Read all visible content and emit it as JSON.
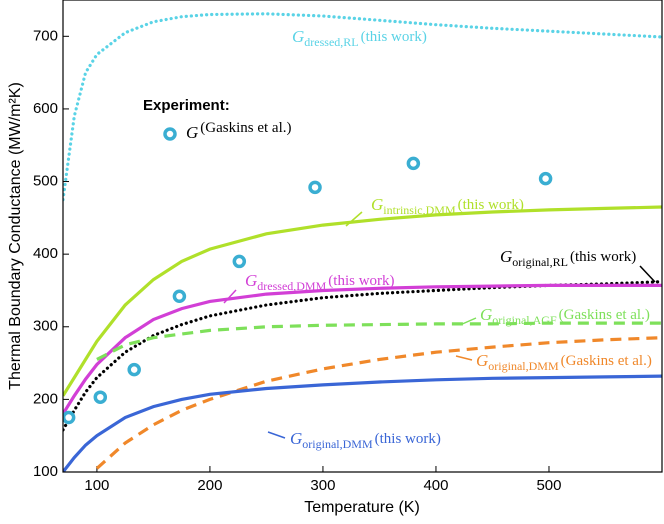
{
  "chart_data": {
    "type": "line",
    "x_label": "Temperature (K)",
    "y_label": "Thermal Boundary Conductance (MW/m²K)",
    "xlim": [
      70,
      600
    ],
    "ylim": [
      100,
      750
    ],
    "xticks": [
      100,
      200,
      300,
      400,
      500
    ],
    "yticks": [
      100,
      200,
      300,
      400,
      500,
      600,
      700
    ],
    "grid": false,
    "x": [
      70,
      80,
      90,
      100,
      125,
      150,
      175,
      200,
      250,
      300,
      350,
      400,
      450,
      500,
      550,
      600
    ],
    "series": [
      {
        "symbol": "G",
        "subscript": "dressed,RL",
        "note": "(this work)",
        "color": "#5ad3e6",
        "dash": "dotted",
        "values": [
          475,
          590,
          650,
          675,
          705,
          720,
          727,
          730,
          731,
          728,
          722,
          716,
          711,
          707,
          703,
          699
        ]
      },
      {
        "symbol": "G",
        "subscript": "intrinsic,DMM",
        "note": "(this work)",
        "color": "#b0e02a",
        "dash": "solid",
        "values": [
          205,
          230,
          255,
          280,
          330,
          365,
          390,
          407,
          428,
          440,
          448,
          454,
          458,
          461,
          463,
          465
        ]
      },
      {
        "symbol": "G",
        "subscript": "original,RL",
        "note": "(this work)",
        "color": "#000000",
        "dash": "dotted",
        "values": [
          158,
          185,
          210,
          230,
          265,
          288,
          303,
          315,
          330,
          340,
          346,
          350,
          354,
          357,
          359,
          362
        ]
      },
      {
        "symbol": "G",
        "subscript": "dressed,DMM",
        "note": "(this work)",
        "color": "#d23fd6",
        "dash": "solid",
        "values": [
          180,
          205,
          228,
          248,
          285,
          310,
          325,
          335,
          345,
          350,
          353,
          355,
          356,
          357,
          357,
          357
        ]
      },
      {
        "symbol": "G",
        "subscript": "original,AGF",
        "note": "(Gaskins et al.)",
        "color": "#7ee05a",
        "dash": "dashed",
        "values": [
          null,
          null,
          null,
          255,
          275,
          285,
          290,
          295,
          300,
          302,
          303,
          304,
          304,
          305,
          305,
          305
        ]
      },
      {
        "symbol": "G",
        "subscript": "original,DMM",
        "note": "(Gaskins et al.)",
        "color": "#f0882a",
        "dash": "dashed",
        "values": [
          null,
          null,
          null,
          105,
          140,
          165,
          185,
          200,
          225,
          242,
          255,
          265,
          272,
          278,
          282,
          285
        ]
      },
      {
        "symbol": "G",
        "subscript": "original,DMM",
        "note": "(this work)",
        "color": "#3a66d6",
        "dash": "solid",
        "values": [
          100,
          120,
          137,
          150,
          175,
          190,
          200,
          207,
          215,
          220,
          224,
          227,
          229,
          230,
          231,
          232
        ]
      }
    ],
    "experiment": {
      "heading": "Experiment:",
      "symbol": "G",
      "note": "(Gaskins et al.)",
      "color": "#3aaed2",
      "x": [
        75,
        103,
        133,
        173,
        226,
        293,
        380,
        497
      ],
      "values": [
        175,
        203,
        241,
        342,
        390,
        492,
        525,
        504
      ]
    }
  }
}
